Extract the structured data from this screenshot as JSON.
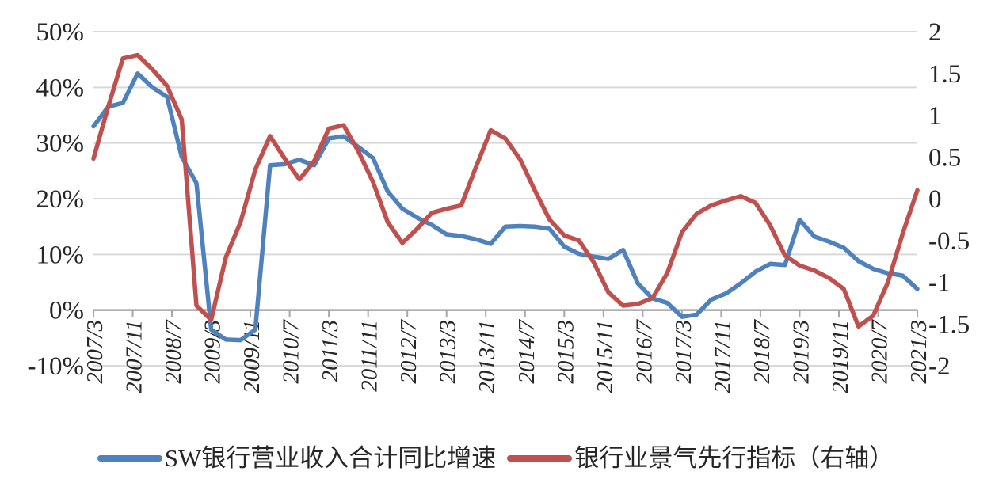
{
  "chart_data": {
    "type": "line",
    "title": "",
    "grid": true,
    "legend_position": "bottom",
    "x_total_months": 168,
    "x_label_step_months": 8,
    "x_labels": [
      "2007/3",
      "2007/11",
      "2008/7",
      "2009/3",
      "2009/11",
      "2010/7",
      "2011/3",
      "2011/11",
      "2012/7",
      "2013/3",
      "2013/11",
      "2014/7",
      "2015/3",
      "2015/11",
      "2016/7",
      "2017/3",
      "2017/11",
      "2018/7",
      "2019/3",
      "2019/11",
      "2020/7",
      "2021/3"
    ],
    "left_axis": {
      "min": -10,
      "max": 50,
      "unit": "%",
      "tick_labels": [
        "50%",
        "40%",
        "30%",
        "20%",
        "10%",
        "0%",
        "-10%"
      ]
    },
    "right_axis": {
      "min": -2,
      "max": 2,
      "tick_labels": [
        "2",
        "1.5",
        "1",
        "0.5",
        "0",
        "-0.5",
        "-1",
        "-1.5",
        "-2"
      ]
    },
    "series": [
      {
        "name": "SW银行营业收入合计同比增速",
        "axis": "left",
        "color": "#4F81BD",
        "points": [
          [
            0,
            33.0
          ],
          [
            3,
            36.5
          ],
          [
            6,
            37.2
          ],
          [
            9,
            42.5
          ],
          [
            12,
            40.0
          ],
          [
            15,
            38.3
          ],
          [
            18,
            27.5
          ],
          [
            21,
            22.8
          ],
          [
            24,
            -3.5
          ],
          [
            27,
            -5.3
          ],
          [
            30,
            -5.4
          ],
          [
            33,
            -3.5
          ],
          [
            36,
            26.0
          ],
          [
            39,
            26.2
          ],
          [
            42,
            27.0
          ],
          [
            45,
            26.0
          ],
          [
            48,
            30.8
          ],
          [
            51,
            31.2
          ],
          [
            54,
            29.3
          ],
          [
            57,
            27.3
          ],
          [
            60,
            21.3
          ],
          [
            63,
            18.2
          ],
          [
            66,
            16.6
          ],
          [
            69,
            15.3
          ],
          [
            72,
            13.6
          ],
          [
            75,
            13.3
          ],
          [
            78,
            12.7
          ],
          [
            81,
            11.9
          ],
          [
            84,
            15.0
          ],
          [
            87,
            15.1
          ],
          [
            90,
            15.0
          ],
          [
            93,
            14.6
          ],
          [
            96,
            11.4
          ],
          [
            99,
            10.1
          ],
          [
            102,
            9.6
          ],
          [
            105,
            9.2
          ],
          [
            108,
            10.8
          ],
          [
            111,
            4.8
          ],
          [
            114,
            2.1
          ],
          [
            117,
            1.3
          ],
          [
            120,
            -1.2
          ],
          [
            123,
            -0.8
          ],
          [
            126,
            1.9
          ],
          [
            129,
            3.0
          ],
          [
            132,
            4.8
          ],
          [
            135,
            6.9
          ],
          [
            138,
            8.3
          ],
          [
            141,
            8.1
          ],
          [
            144,
            16.2
          ],
          [
            147,
            13.2
          ],
          [
            150,
            12.3
          ],
          [
            153,
            11.2
          ],
          [
            156,
            8.8
          ],
          [
            159,
            7.4
          ],
          [
            162,
            6.6
          ],
          [
            165,
            6.2
          ],
          [
            168,
            3.8
          ]
        ]
      },
      {
        "name": "银行业景气先行指标（右轴）",
        "axis": "right",
        "color": "#C0504D",
        "points": [
          [
            0,
            0.48
          ],
          [
            3,
            1.1
          ],
          [
            6,
            1.68
          ],
          [
            9,
            1.72
          ],
          [
            12,
            1.55
          ],
          [
            15,
            1.35
          ],
          [
            18,
            0.95
          ],
          [
            21,
            -1.28
          ],
          [
            24,
            -1.45
          ],
          [
            27,
            -0.7
          ],
          [
            30,
            -0.28
          ],
          [
            33,
            0.35
          ],
          [
            36,
            0.75
          ],
          [
            39,
            0.48
          ],
          [
            42,
            0.23
          ],
          [
            45,
            0.45
          ],
          [
            48,
            0.84
          ],
          [
            51,
            0.88
          ],
          [
            54,
            0.57
          ],
          [
            57,
            0.2
          ],
          [
            60,
            -0.28
          ],
          [
            63,
            -0.53
          ],
          [
            66,
            -0.36
          ],
          [
            69,
            -0.17
          ],
          [
            72,
            -0.12
          ],
          [
            75,
            -0.08
          ],
          [
            78,
            0.38
          ],
          [
            81,
            0.82
          ],
          [
            84,
            0.72
          ],
          [
            87,
            0.47
          ],
          [
            90,
            0.1
          ],
          [
            93,
            -0.25
          ],
          [
            96,
            -0.44
          ],
          [
            99,
            -0.5
          ],
          [
            102,
            -0.76
          ],
          [
            105,
            -1.12
          ],
          [
            108,
            -1.28
          ],
          [
            111,
            -1.26
          ],
          [
            114,
            -1.19
          ],
          [
            117,
            -0.89
          ],
          [
            120,
            -0.4
          ],
          [
            123,
            -0.18
          ],
          [
            126,
            -0.08
          ],
          [
            129,
            -0.02
          ],
          [
            132,
            0.03
          ],
          [
            135,
            -0.05
          ],
          [
            138,
            -0.32
          ],
          [
            141,
            -0.68
          ],
          [
            144,
            -0.8
          ],
          [
            147,
            -0.86
          ],
          [
            150,
            -0.95
          ],
          [
            153,
            -1.08
          ],
          [
            156,
            -1.53
          ],
          [
            159,
            -1.4
          ],
          [
            162,
            -1.0
          ],
          [
            165,
            -0.42
          ],
          [
            168,
            0.1
          ]
        ]
      }
    ],
    "colors": {
      "gridline": "#d9d9d9",
      "axis_line": "#a6a6a6",
      "text": "#262626"
    }
  },
  "legend": {
    "items": [
      {
        "label": "SW银行营业收入合计同比增速"
      },
      {
        "label": "银行业景气先行指标（右轴）"
      }
    ]
  }
}
